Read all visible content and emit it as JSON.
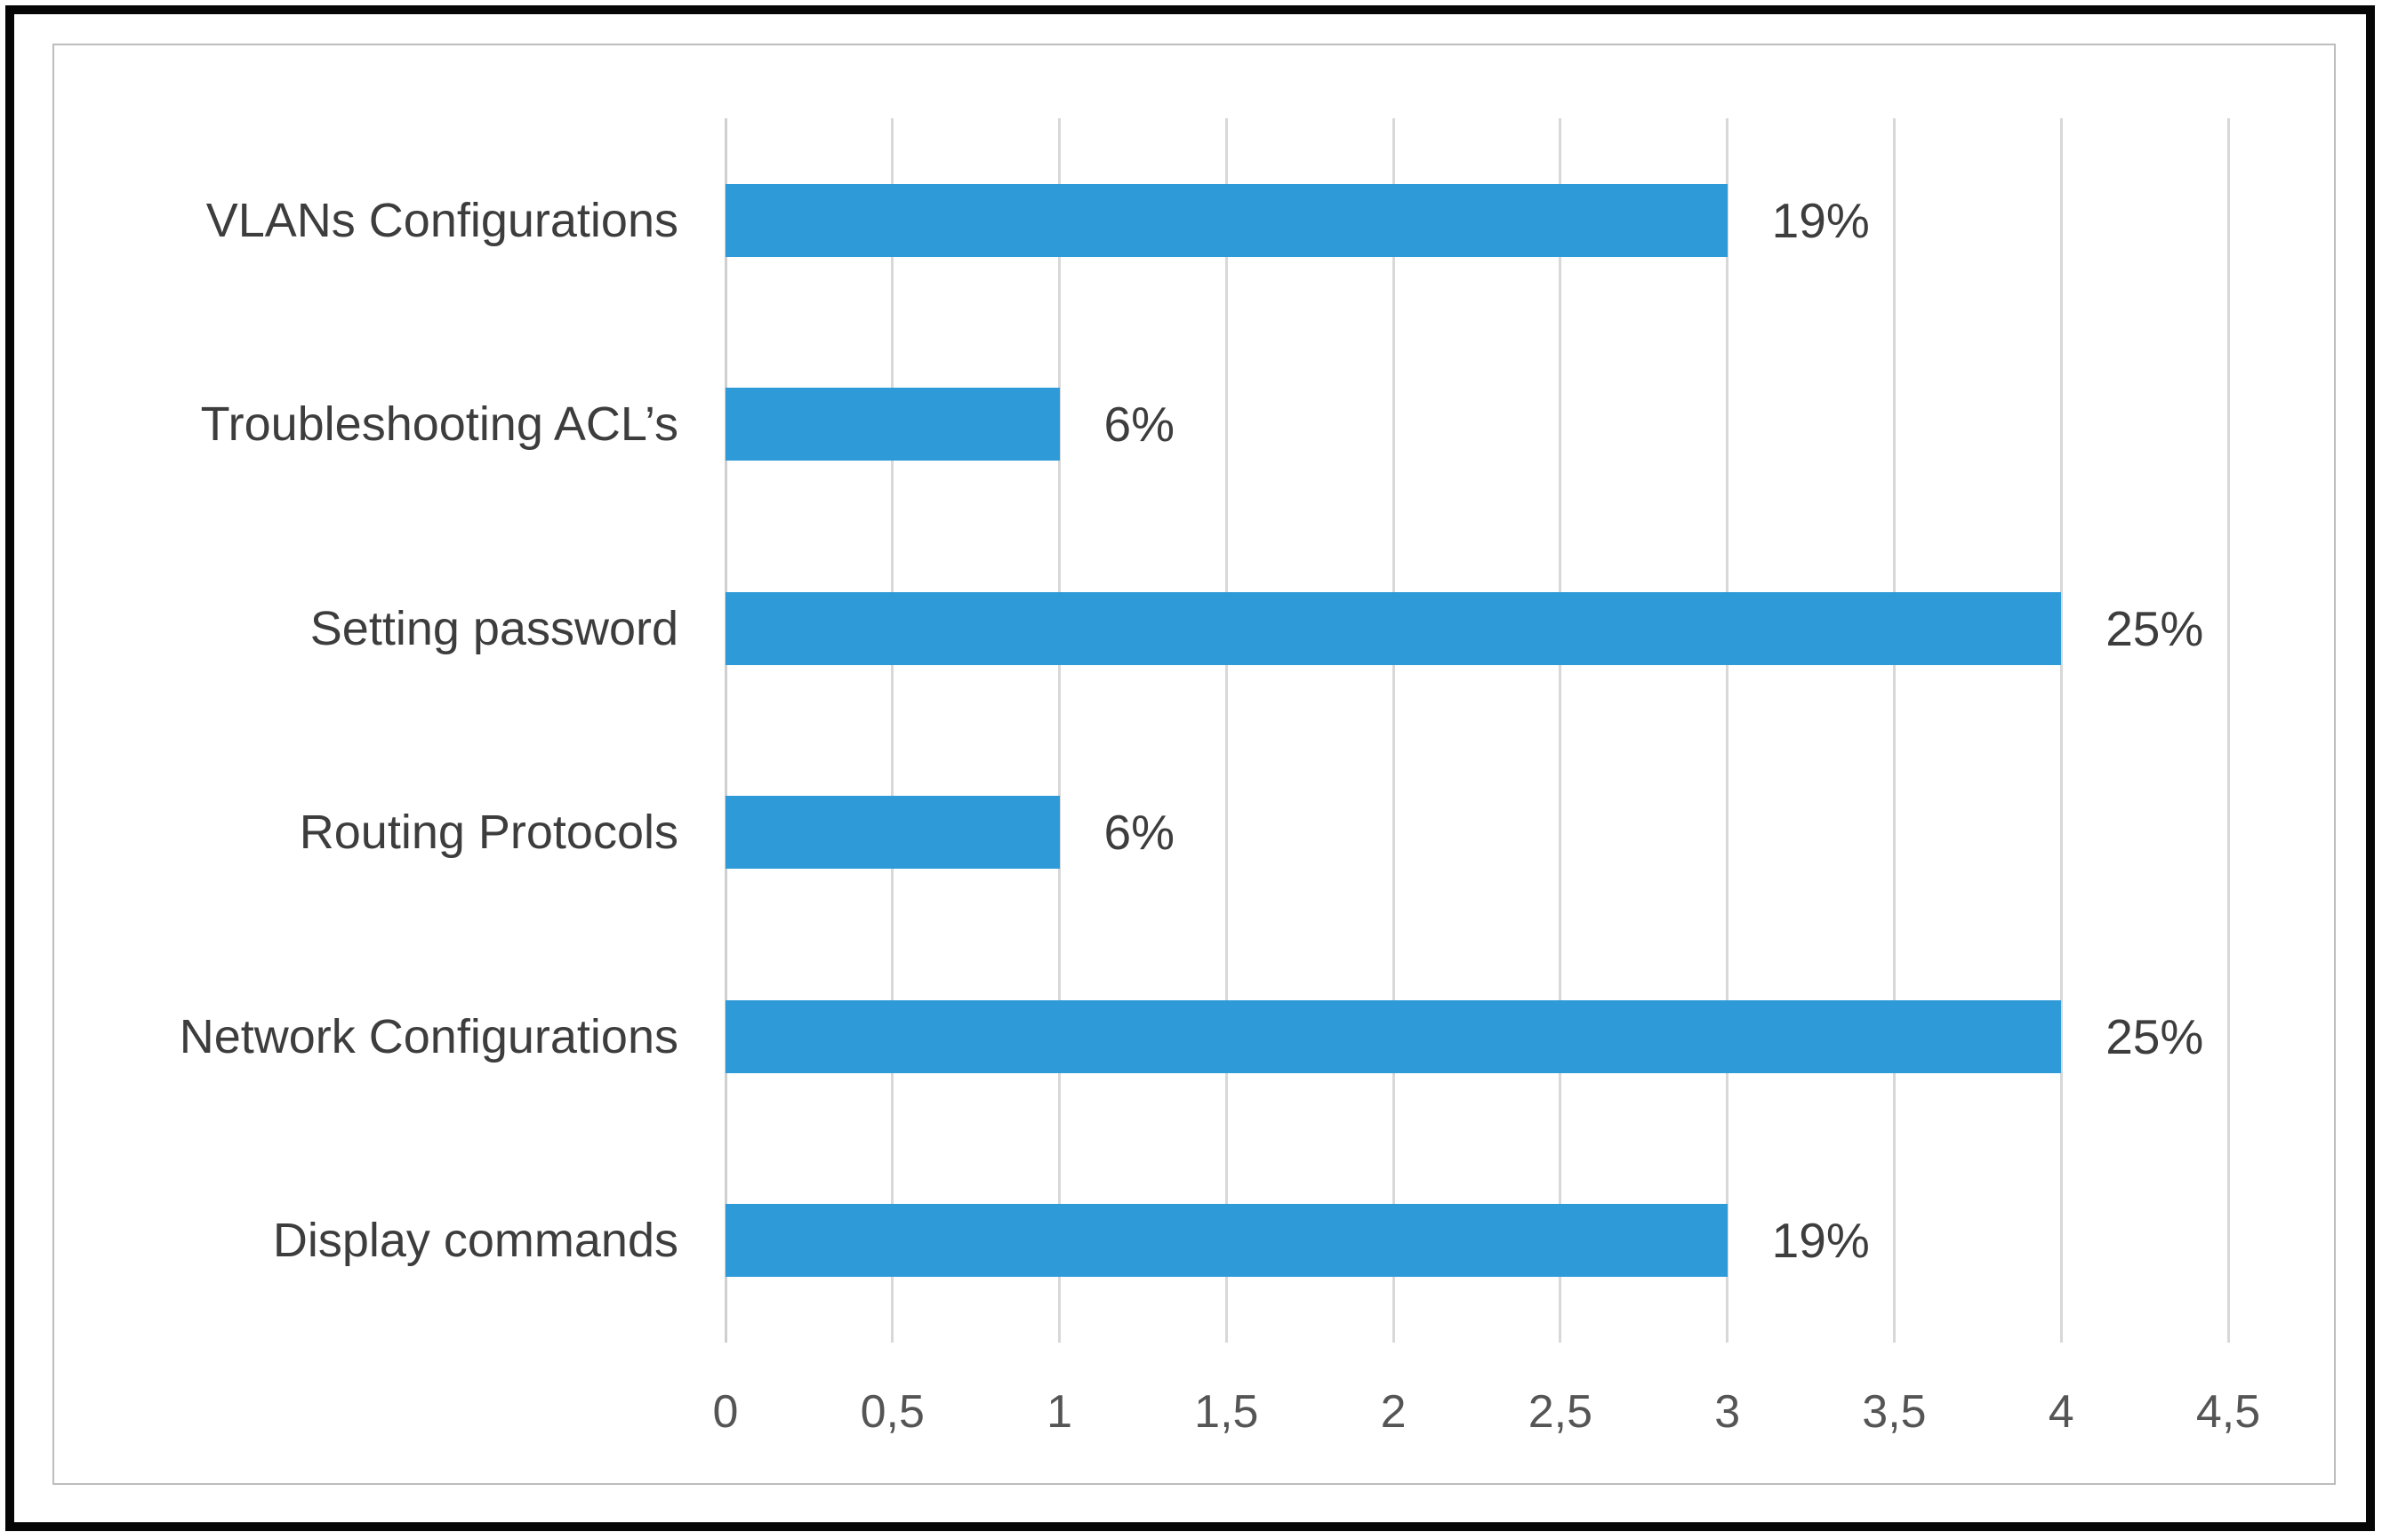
{
  "chart_data": {
    "type": "bar",
    "orientation": "horizontal",
    "title": "",
    "xlabel": "",
    "ylabel": "",
    "legend": "none",
    "grid": "vertical",
    "xlim": [
      0,
      4.5
    ],
    "categories": [
      "VLANs Configurations",
      "Troubleshooting ACL’s",
      "Setting password",
      "Routing Protocols",
      "Network Configurations",
      "Display commands"
    ],
    "values": [
      3,
      1,
      4,
      1,
      4,
      3
    ],
    "data_labels": [
      "19%",
      "6%",
      "25%",
      "6%",
      "25%",
      "19%"
    ],
    "x_ticks": [
      {
        "v": 0,
        "label": "0"
      },
      {
        "v": 0.5,
        "label": "0,5"
      },
      {
        "v": 1,
        "label": "1"
      },
      {
        "v": 1.5,
        "label": "1,5"
      },
      {
        "v": 2,
        "label": "2"
      },
      {
        "v": 2.5,
        "label": "2,5"
      },
      {
        "v": 3,
        "label": "3"
      },
      {
        "v": 3.5,
        "label": "3,5"
      },
      {
        "v": 4,
        "label": "4"
      },
      {
        "v": 4.5,
        "label": "4,5"
      }
    ],
    "colors": {
      "bar": "#2E9AD8",
      "gridline": "#D8D8D8",
      "zero_line": "#CFCFCF",
      "label_text": "#3D3D3D",
      "tick_text": "#555555",
      "chart_border": "#BDBDBD",
      "outer_frame": "#060606"
    }
  }
}
